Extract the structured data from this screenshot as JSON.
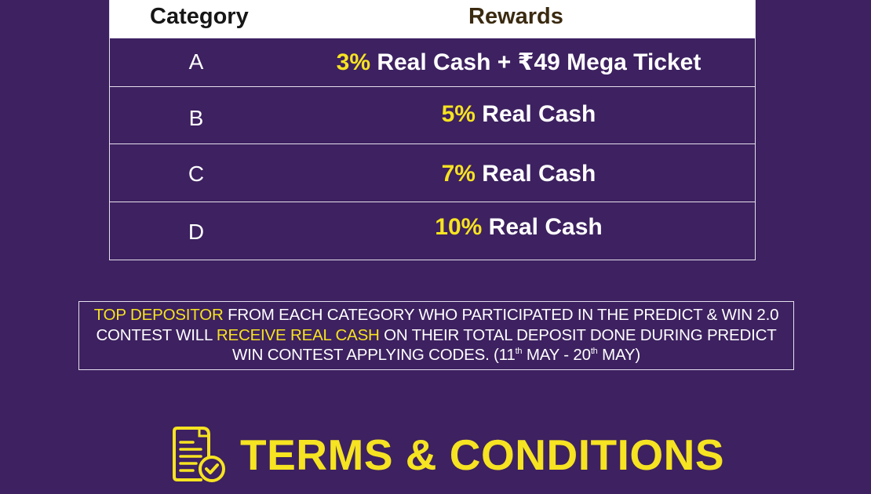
{
  "table": {
    "header": {
      "category": "Category",
      "rewards": "Rewards"
    },
    "rows": [
      {
        "category": "A",
        "reward_highlight": "3%",
        "reward_text": " Real Cash + ₹49 Mega Ticket"
      },
      {
        "category": "B",
        "reward_highlight": "5%",
        "reward_text": " Real Cash"
      },
      {
        "category": "C",
        "reward_highlight": "7%",
        "reward_text": " Real Cash"
      },
      {
        "category": "D",
        "reward_highlight": "10%",
        "reward_text": " Real Cash"
      }
    ]
  },
  "notice": {
    "part1_highlight": "TOP DEPOSITOR",
    "part2": " FROM EACH CATEGORY WHO PARTICIPATED IN THE PREDICT & WIN 2.0 CONTEST WILL ",
    "part3_highlight": "RECEIVE REAL CASH",
    "part4": " ON THEIR TOTAL DEPOSIT DONE DURING PREDICT WIN CONTEST APPLYING CODES. (11",
    "sup1": "th",
    "part5": " MAY - 20",
    "sup2": "th",
    "part6": " MAY)"
  },
  "terms": {
    "title": "TERMS & CONDITIONS",
    "icon": "document-check-icon"
  },
  "colors": {
    "background": "#3d2160",
    "accent": "#f6e321",
    "text": "#ffffff"
  }
}
